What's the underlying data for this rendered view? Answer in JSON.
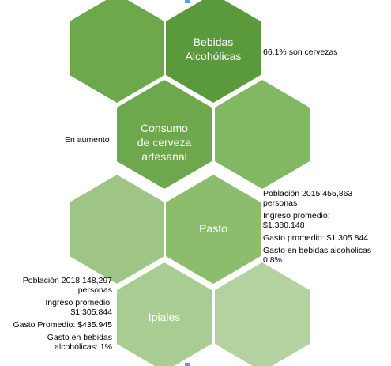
{
  "hexagons": {
    "top_left": {
      "color": "#6ea84d",
      "label": ""
    },
    "top_right": {
      "color": "#5b9a3c",
      "label": "Bebidas\nAlcohólicas"
    },
    "mid_left": {
      "color": "#6ea84d",
      "label": "Consumo\nde cerveza\nartesanal"
    },
    "mid_right": {
      "color": "#82b864",
      "label": ""
    },
    "pasto_left": {
      "color": "#9ec585",
      "label": ""
    },
    "pasto": {
      "color": "#8bbd6d",
      "label": "Pasto"
    },
    "ipiales": {
      "color": "#a9cc93",
      "label": "Ipiales"
    },
    "bottom_right": {
      "color": "#b3d2a0",
      "label": ""
    }
  },
  "notes": {
    "cervezas": "66.1% son cervezas",
    "aumento": "En aumento",
    "pasto": {
      "poblacion": [
        "Población 2015 455,863",
        "personas"
      ],
      "ingreso": [
        "Ingreso promedio:",
        "$1.380.148"
      ],
      "gasto": [
        "Gasto promedio: $1.305.844"
      ],
      "gasto_bebidas": [
        "Gasto en bebidas alcoholicas",
        "0.8%"
      ]
    },
    "ipiales": {
      "poblacion": [
        "Población  2018 148,297",
        "personas"
      ],
      "ingreso": [
        "Ingreso promedio:",
        "$1.305.844"
      ],
      "gasto": [
        "Gasto Promedio: $435.945"
      ],
      "gasto_bebidas": [
        "Gasto en bebidas",
        "alcohólicas: 1%"
      ]
    }
  }
}
